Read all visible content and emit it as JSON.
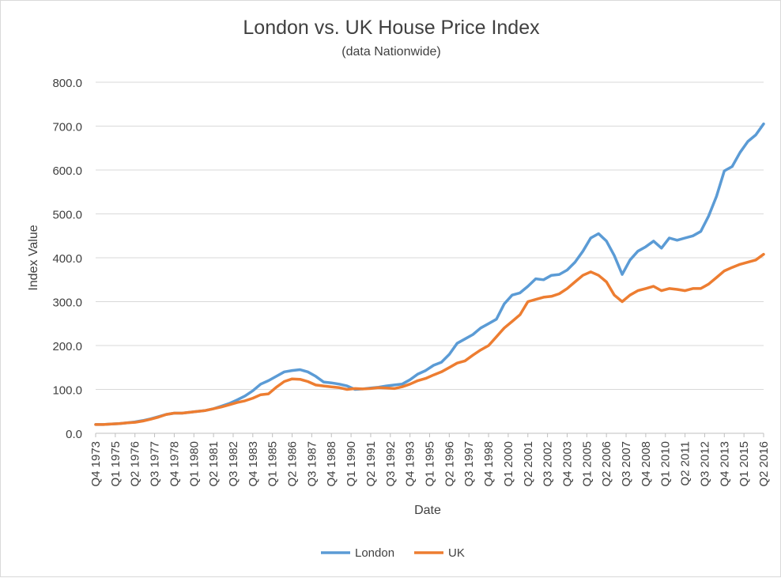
{
  "chart_data": {
    "type": "line",
    "title": "London vs. UK House Price Index",
    "subtitle": "(data Nationwide)",
    "xlabel": "Date",
    "ylabel": "Index Value",
    "ylim": [
      0,
      800
    ],
    "yticks": [
      "0.0",
      "100.0",
      "200.0",
      "300.0",
      "400.0",
      "500.0",
      "600.0",
      "700.0",
      "800.0"
    ],
    "grid": true,
    "legend_position": "bottom",
    "categories": [
      "Q4 1973",
      "Q1 1975",
      "Q2 1976",
      "Q3 1977",
      "Q4 1978",
      "Q1 1980",
      "Q2 1981",
      "Q3 1982",
      "Q4 1983",
      "Q1 1985",
      "Q2 1986",
      "Q3 1987",
      "Q4 1988",
      "Q1 1990",
      "Q2 1991",
      "Q3 1992",
      "Q4 1993",
      "Q1 1995",
      "Q2 1996",
      "Q3 1997",
      "Q4 1998",
      "Q1 2000",
      "Q2 2001",
      "Q3 2002",
      "Q4 2003",
      "Q1 2005",
      "Q2 2006",
      "Q3 2007",
      "Q4 2008",
      "Q1 2010",
      "Q2 2011",
      "Q3 2012",
      "Q4 2013",
      "Q1 2015",
      "Q2 2016"
    ],
    "series": [
      {
        "name": "London",
        "color": "#5b9bd5",
        "values": [
          [
            0,
            20
          ],
          [
            2,
            20
          ],
          [
            4,
            21
          ],
          [
            6,
            22
          ],
          [
            8,
            24
          ],
          [
            10,
            26
          ],
          [
            12,
            29
          ],
          [
            14,
            33
          ],
          [
            16,
            38
          ],
          [
            18,
            43
          ],
          [
            20,
            46
          ],
          [
            22,
            46
          ],
          [
            24,
            48
          ],
          [
            26,
            50
          ],
          [
            28,
            52
          ],
          [
            30,
            56
          ],
          [
            32,
            62
          ],
          [
            34,
            68
          ],
          [
            36,
            76
          ],
          [
            38,
            85
          ],
          [
            40,
            97
          ],
          [
            42,
            112
          ],
          [
            44,
            120
          ],
          [
            46,
            130
          ],
          [
            48,
            140
          ],
          [
            50,
            143
          ],
          [
            52,
            145
          ],
          [
            54,
            140
          ],
          [
            56,
            130
          ],
          [
            58,
            117
          ],
          [
            60,
            115
          ],
          [
            62,
            112
          ],
          [
            64,
            108
          ],
          [
            66,
            100
          ],
          [
            68,
            101
          ],
          [
            70,
            103
          ],
          [
            72,
            105
          ],
          [
            74,
            108
          ],
          [
            76,
            110
          ],
          [
            78,
            112
          ],
          [
            80,
            122
          ],
          [
            82,
            135
          ],
          [
            84,
            143
          ],
          [
            86,
            155
          ],
          [
            88,
            162
          ],
          [
            90,
            180
          ],
          [
            92,
            205
          ],
          [
            94,
            215
          ],
          [
            96,
            225
          ],
          [
            98,
            240
          ],
          [
            100,
            250
          ],
          [
            102,
            260
          ],
          [
            104,
            295
          ],
          [
            106,
            315
          ],
          [
            108,
            320
          ],
          [
            110,
            335
          ],
          [
            112,
            352
          ],
          [
            114,
            350
          ],
          [
            116,
            360
          ],
          [
            118,
            362
          ],
          [
            120,
            372
          ],
          [
            122,
            390
          ],
          [
            124,
            415
          ],
          [
            126,
            445
          ],
          [
            128,
            455
          ],
          [
            130,
            438
          ],
          [
            132,
            405
          ],
          [
            134,
            362
          ],
          [
            136,
            395
          ],
          [
            138,
            415
          ],
          [
            140,
            425
          ],
          [
            142,
            438
          ],
          [
            144,
            422
          ],
          [
            146,
            445
          ],
          [
            148,
            440
          ],
          [
            150,
            445
          ],
          [
            152,
            450
          ],
          [
            154,
            460
          ],
          [
            156,
            495
          ],
          [
            158,
            540
          ],
          [
            160,
            598
          ],
          [
            162,
            608
          ],
          [
            164,
            640
          ],
          [
            166,
            665
          ],
          [
            168,
            680
          ],
          [
            170,
            705
          ]
        ]
      },
      {
        "name": "UK",
        "color": "#ed7d31",
        "values": [
          [
            0,
            20
          ],
          [
            2,
            20
          ],
          [
            4,
            21
          ],
          [
            6,
            22
          ],
          [
            8,
            24
          ],
          [
            10,
            25
          ],
          [
            12,
            28
          ],
          [
            14,
            32
          ],
          [
            16,
            37
          ],
          [
            18,
            43
          ],
          [
            20,
            46
          ],
          [
            22,
            46
          ],
          [
            24,
            48
          ],
          [
            26,
            50
          ],
          [
            28,
            52
          ],
          [
            30,
            56
          ],
          [
            32,
            60
          ],
          [
            34,
            65
          ],
          [
            36,
            70
          ],
          [
            38,
            74
          ],
          [
            40,
            80
          ],
          [
            42,
            88
          ],
          [
            44,
            90
          ],
          [
            46,
            105
          ],
          [
            48,
            118
          ],
          [
            50,
            124
          ],
          [
            52,
            123
          ],
          [
            54,
            118
          ],
          [
            56,
            110
          ],
          [
            58,
            108
          ],
          [
            60,
            106
          ],
          [
            62,
            104
          ],
          [
            64,
            100
          ],
          [
            66,
            102
          ],
          [
            68,
            101
          ],
          [
            70,
            102
          ],
          [
            72,
            104
          ],
          [
            74,
            103
          ],
          [
            76,
            102
          ],
          [
            78,
            106
          ],
          [
            80,
            112
          ],
          [
            82,
            120
          ],
          [
            84,
            125
          ],
          [
            86,
            133
          ],
          [
            88,
            140
          ],
          [
            90,
            150
          ],
          [
            92,
            160
          ],
          [
            94,
            165
          ],
          [
            96,
            178
          ],
          [
            98,
            190
          ],
          [
            100,
            200
          ],
          [
            102,
            220
          ],
          [
            104,
            240
          ],
          [
            106,
            255
          ],
          [
            108,
            270
          ],
          [
            110,
            300
          ],
          [
            112,
            305
          ],
          [
            114,
            310
          ],
          [
            116,
            312
          ],
          [
            118,
            318
          ],
          [
            120,
            330
          ],
          [
            122,
            345
          ],
          [
            124,
            360
          ],
          [
            126,
            368
          ],
          [
            128,
            360
          ],
          [
            130,
            345
          ],
          [
            132,
            315
          ],
          [
            134,
            300
          ],
          [
            136,
            315
          ],
          [
            138,
            325
          ],
          [
            140,
            330
          ],
          [
            142,
            335
          ],
          [
            144,
            325
          ],
          [
            146,
            330
          ],
          [
            148,
            328
          ],
          [
            150,
            325
          ],
          [
            152,
            330
          ],
          [
            154,
            330
          ],
          [
            156,
            340
          ],
          [
            158,
            355
          ],
          [
            160,
            370
          ],
          [
            162,
            378
          ],
          [
            164,
            385
          ],
          [
            166,
            390
          ],
          [
            168,
            395
          ],
          [
            170,
            408
          ]
        ]
      }
    ]
  }
}
